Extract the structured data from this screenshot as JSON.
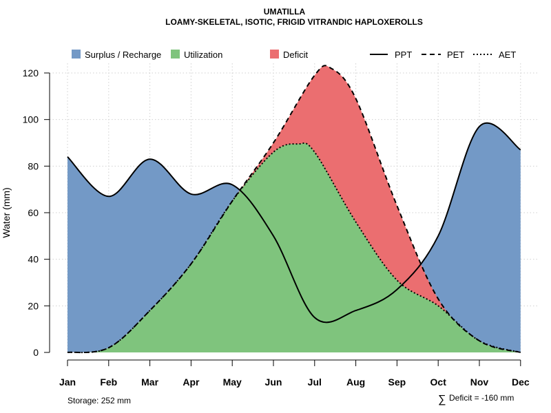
{
  "chart_data": {
    "type": "area",
    "title": "UMATILLA",
    "subtitle": "LOAMY-SKELETAL, ISOTIC, FRIGID VITRANDIC HAPLOXEROLLS",
    "xlabel": "",
    "ylabel": "Water (mm)",
    "categories": [
      "Jan",
      "Feb",
      "Mar",
      "Apr",
      "May",
      "Jun",
      "Jul",
      "Aug",
      "Sep",
      "Oct",
      "Nov",
      "Dec"
    ],
    "ylim": [
      0,
      120
    ],
    "yticks": [
      0,
      20,
      40,
      60,
      80,
      100,
      120
    ],
    "grid": true,
    "legend_position": "top",
    "series": [
      {
        "name": "PPT",
        "style": "solid",
        "x": [
          0,
          1,
          2,
          3,
          4,
          5,
          6,
          7,
          8,
          9,
          10,
          11
        ],
        "values": [
          84,
          67,
          83,
          68,
          72,
          50,
          15,
          18,
          27,
          50,
          97,
          87
        ]
      },
      {
        "name": "PET",
        "style": "dashed",
        "x": [
          0,
          1,
          2,
          3,
          4,
          5,
          6,
          6.4,
          7,
          8,
          9,
          10,
          11
        ],
        "values": [
          0,
          2,
          18,
          38,
          65,
          90,
          119,
          122,
          109,
          63,
          23,
          5,
          0
        ]
      },
      {
        "name": "AET",
        "style": "dotted",
        "x": [
          0,
          1,
          2,
          3,
          4,
          5,
          5.6,
          6,
          7,
          8,
          9,
          10,
          11
        ],
        "values": [
          0,
          2,
          18,
          38,
          65,
          86,
          89.5,
          86,
          56,
          31,
          20,
          5,
          0
        ]
      }
    ],
    "fills": [
      {
        "name": "Surplus / Recharge",
        "color": "#7399C6"
      },
      {
        "name": "Utilization",
        "color": "#7FC47D"
      },
      {
        "name": "Deficit",
        "color": "#EB6E70"
      }
    ],
    "line_color": "#000000",
    "footnotes": {
      "storage": "Storage: 252 mm",
      "deficit_symbol": "∑",
      "deficit": "Deficit = -160 mm"
    }
  }
}
